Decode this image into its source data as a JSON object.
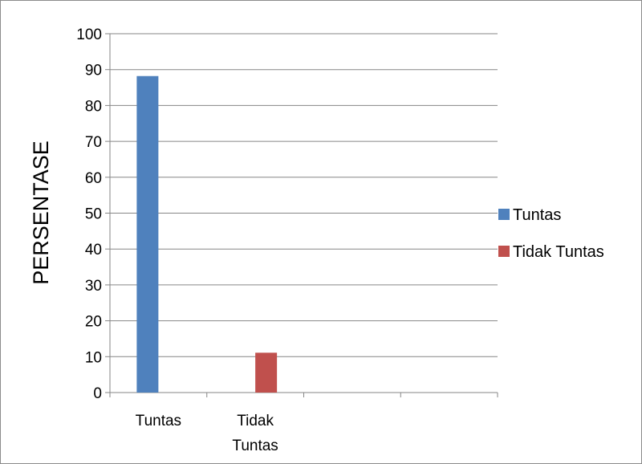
{
  "chart_data": {
    "type": "bar",
    "ylabel": "PERSENTASE",
    "ylim": [
      0,
      100
    ],
    "yticks": [
      0,
      10,
      20,
      30,
      40,
      50,
      60,
      70,
      80,
      90,
      100
    ],
    "ytick_labels": [
      "0",
      "10",
      "20",
      "30",
      "40",
      "50",
      "60",
      "70",
      "80",
      "90",
      "100"
    ],
    "categories": [
      [
        "Tuntas"
      ],
      [
        "Tidak",
        "Tuntas"
      ],
      [
        ""
      ],
      [
        ""
      ]
    ],
    "series": [
      {
        "name": "Tuntas",
        "values": [
          88.2,
          null,
          null,
          null
        ],
        "color": "#4F81BD"
      },
      {
        "name": "Tidak Tuntas",
        "values": [
          null,
          11.1,
          null,
          null
        ],
        "color": "#C0504D"
      }
    ],
    "grid": true,
    "legend": "right"
  }
}
